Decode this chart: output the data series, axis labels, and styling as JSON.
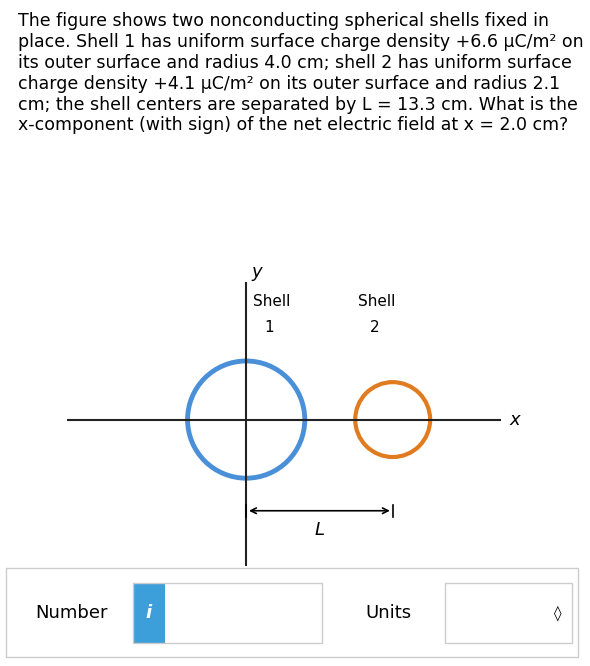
{
  "background_color": "#ffffff",
  "text_color": "#000000",
  "paragraph_text": "The figure shows two nonconducting spherical shells fixed in place. Shell 1 has uniform surface charge density +6.6 μC/m² on its outer surface and radius 4.0 cm; shell 2 has uniform surface charge density +4.1 μC/m² on its outer surface and radius 2.1 cm; the shell centers are separated by L = 13.3 cm. What is the x-component (with sign) of the net electric field at x = 2.0 cm?",
  "shell1_color": "#4a90d9",
  "shell2_color": "#e07b20",
  "shell1_lw": 3.5,
  "shell2_lw": 3.0,
  "axis_color": "#222222",
  "L_label": "L",
  "x_label": "x",
  "y_label": "y",
  "number_label": "Number",
  "units_label": "Units",
  "i_button_color": "#3d9fd9",
  "i_button_text": "i",
  "bottom_border_color": "#cccccc",
  "chevron": "◊"
}
